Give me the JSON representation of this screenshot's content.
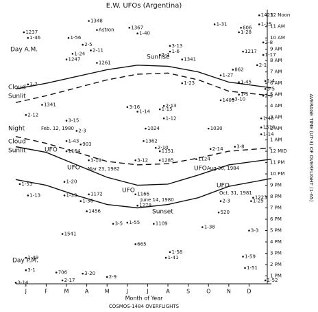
{
  "chart_data": {
    "type": "scatter",
    "title": "E.W. UFOs (Argentina)",
    "x_label": "Month of Year",
    "y_label": "AVERAGE TIME (UT-3) OF OVERFLIGHT (1-65)",
    "footer": "COSMOS-1484 OVERFLIGHTS",
    "xlim": [
      0,
      12.6
    ],
    "ylim": [
      12.3,
      36.5
    ],
    "xticks": [
      {
        "value": 0.5,
        "label": "J"
      },
      {
        "value": 1.5,
        "label": "F"
      },
      {
        "value": 2.5,
        "label": "M"
      },
      {
        "value": 3.5,
        "label": "A"
      },
      {
        "value": 4.5,
        "label": "M"
      },
      {
        "value": 5.5,
        "label": "J"
      },
      {
        "value": 6.5,
        "label": "J"
      },
      {
        "value": 7.5,
        "label": "A"
      },
      {
        "value": 8.5,
        "label": "S"
      },
      {
        "value": 9.5,
        "label": "O"
      },
      {
        "value": 10.5,
        "label": "N"
      },
      {
        "value": 11.5,
        "label": "D"
      }
    ],
    "yticks": [
      {
        "value": 36,
        "label": "12 Noon"
      },
      {
        "value": 35,
        "label": "11 AM"
      },
      {
        "value": 34,
        "label": "10 AM"
      },
      {
        "value": 33,
        "label": "9 AM"
      },
      {
        "value": 32,
        "label": "8 AM"
      },
      {
        "value": 31,
        "label": "7 AM"
      },
      {
        "value": 30,
        "label": "6 AM"
      },
      {
        "value": 29,
        "label": "5 AM"
      },
      {
        "value": 28,
        "label": "4 AM"
      },
      {
        "value": 27,
        "label": "3 AM"
      },
      {
        "value": 26,
        "label": "2 AM"
      },
      {
        "value": 25,
        "label": "1 AM"
      },
      {
        "value": 24,
        "label": "12 MID"
      },
      {
        "value": 23,
        "label": "11 PM"
      },
      {
        "value": 22,
        "label": "10 PM"
      },
      {
        "value": 21,
        "label": "9 PM"
      },
      {
        "value": 20,
        "label": "8 PM"
      },
      {
        "value": 19,
        "label": "7 PM"
      },
      {
        "value": 18,
        "label": "6 PM"
      },
      {
        "value": 17,
        "label": "5 PM"
      },
      {
        "value": 16,
        "label": "4 PM"
      },
      {
        "value": 15,
        "label": "3 PM"
      },
      {
        "value": 14,
        "label": "2 PM"
      },
      {
        "value": 13,
        "label": "1 PM"
      }
    ],
    "color": "#111111",
    "series": [
      {
        "x": [
          0.4,
          0.6,
          2.6,
          3.6,
          4.0,
          5.6,
          6.0,
          9.8,
          12.0,
          12.0,
          11.1,
          11.0,
          3.3,
          3.7,
          2.8,
          2.5,
          4.0,
          7.6,
          7.6,
          7.1,
          8.2,
          12.2,
          11.2,
          12.2,
          11.9,
          10.7,
          0.6,
          8.2,
          10.1,
          11.0,
          11.0,
          12.3,
          12.3,
          12.2,
          10.1,
          10.7,
          1.3,
          5.5,
          7.3,
          6.0,
          7.1,
          7.3,
          0.5,
          2.5,
          3.0,
          2.5,
          3.2,
          6.4,
          6.3,
          9.5,
          12.1,
          12.1,
          12.1,
          6.9,
          7.1,
          7.1,
          8.9,
          9.6,
          10.8,
          2.5,
          3.6,
          5.9,
          0.2,
          2.4,
          3.6,
          5.9,
          6.0,
          3.5,
          0.6,
          2.4,
          3.2,
          4.8,
          5.5,
          6.8,
          10.0,
          10.1,
          9.2,
          11.7,
          11.6,
          11.5,
          2.3,
          0.5,
          0.5,
          2.0,
          3.3,
          2.3,
          0.0,
          5.9,
          7.6,
          7.4,
          4.5,
          11.2,
          11.3,
          12.3
        ],
        "values": [
          34.5,
          34.0,
          34.0,
          35.5,
          34.7,
          34.9,
          34.4,
          35.2,
          36.0,
          35.2,
          34.9,
          34.5,
          33.4,
          32.9,
          32.6,
          32.1,
          31.8,
          33.3,
          32.8,
          32.5,
          32.1,
          33.6,
          32.8,
          32.5,
          31.6,
          31.2,
          29.9,
          30.0,
          30.7,
          30.1,
          29.0,
          30.2,
          29.5,
          28.9,
          28.5,
          28.6,
          28.1,
          27.9,
          28.0,
          27.5,
          27.7,
          26.9,
          27.2,
          26.7,
          25.8,
          24.9,
          24.6,
          26.0,
          24.9,
          26.0,
          26.9,
          26.1,
          25.5,
          24.3,
          24.0,
          23.2,
          23.3,
          24.2,
          24.4,
          24.0,
          23.2,
          23.2,
          21.1,
          21.3,
          20.2,
          20.2,
          19.2,
          18.7,
          20.1,
          20.1,
          19.6,
          17.6,
          17.7,
          17.6,
          18.6,
          19.6,
          17.3,
          19.9,
          19.6,
          17.0,
          16.7,
          14.6,
          13.5,
          13.3,
          13.2,
          12.6,
          12.4,
          15.8,
          15.1,
          14.6,
          12.9,
          14.7,
          13.7,
          12.6
        ],
        "labels": [
          "1237",
          "1-46",
          "1-56",
          "1348",
          "Astron",
          "1367",
          "1-40",
          "1-31",
          "1423",
          "1-25",
          "606",
          "1-28",
          "2-5",
          "2-11",
          "1-24",
          "1247",
          "1261",
          "3-13",
          "1-6",
          "2-4",
          "1341",
          "2-8",
          "1217",
          "1-17",
          "2-1",
          "862",
          "3-7",
          "1-23",
          "1-27",
          "1-45",
          "1-5",
          "1-4",
          "3-5",
          "2-3",
          "1409",
          "3-10",
          "1341",
          "3-16",
          "2-13",
          "1-14",
          "1-15",
          "1-12",
          "2-12",
          "3-15",
          "2-3",
          "1-43",
          "903",
          "1024",
          "1362",
          "1030",
          "1-48",
          "1518",
          "1-14",
          "2-10",
          "1151",
          "1285",
          "1124",
          "2-14",
          "3-8",
          "1164",
          "3-18",
          "3-12",
          "1-53",
          "1-20",
          "1172",
          "1166",
          "1278",
          "1456",
          "1-13",
          "1-33",
          "1-56",
          "3-5",
          "1-55",
          "1109",
          "520",
          "2-3",
          "1-38",
          "1223",
          "1-25",
          "3-3",
          "1541",
          "1-49",
          "3-1",
          "706",
          "3-20",
          "2-17",
          "3-14",
          "665",
          "1-58",
          "1-41",
          "2-9",
          "1-59",
          "1-51",
          "1-52"
        ]
      }
    ],
    "curves": [
      {
        "style": "solid",
        "x": [
          0,
          1.5,
          3,
          4.5,
          6,
          7.5,
          9,
          10.5,
          12.6
        ],
        "values": [
          29.5,
          30.0,
          30.6,
          31.2,
          31.6,
          31.5,
          31.0,
          30.1,
          29.6
        ]
      },
      {
        "style": "dashed",
        "x": [
          0,
          1.5,
          3,
          4.5,
          6,
          7.5,
          9,
          10.5,
          12.6
        ],
        "values": [
          28.3,
          28.9,
          29.6,
          30.3,
          30.8,
          30.9,
          30.3,
          29.3,
          28.9
        ]
      },
      {
        "style": "dashed",
        "x": [
          0,
          1.5,
          3,
          4.5,
          6,
          7.5,
          9,
          10.5,
          12.6
        ],
        "values": [
          25.3,
          24.7,
          23.9,
          23.1,
          22.8,
          22.9,
          23.4,
          24.0,
          24.3
        ]
      },
      {
        "style": "solid",
        "x": [
          0,
          1.5,
          3,
          4.5,
          6,
          7.5,
          9,
          10.5,
          12.6
        ],
        "values": [
          24.4,
          23.9,
          22.8,
          21.7,
          21.0,
          21.1,
          21.9,
          22.8,
          23.3
        ]
      },
      {
        "style": "solid",
        "x": [
          0,
          1.5,
          3,
          4.5,
          6,
          7.5,
          9,
          10.5,
          12.6
        ],
        "values": [
          21.5,
          21.0,
          20.1,
          19.3,
          19.0,
          19.3,
          19.9,
          20.9,
          21.6
        ]
      }
    ],
    "annotations": [
      "Day A.M.",
      "Cloud",
      "Sunlit",
      "Night",
      "Feb. 12, 1980",
      "Cloud",
      "Sunlit",
      "UFO",
      "UFO",
      "Mar 23, 1982",
      "UFO",
      "June 14, 1980",
      "UFO",
      "Aug 30, 1984",
      "UFO",
      "Oct. 31, 1981",
      "Sunrise",
      "Sunset",
      "Day P.M."
    ]
  }
}
